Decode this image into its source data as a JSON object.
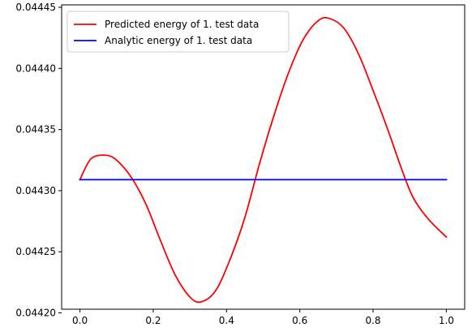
{
  "chart_data": {
    "type": "line",
    "title": "",
    "xlabel": "",
    "ylabel": "",
    "xlim": [
      -0.05,
      1.05
    ],
    "ylim": [
      0.044203,
      0.044452
    ],
    "grid": false,
    "legend_position": "top-left",
    "x_ticks": [
      0.0,
      0.2,
      0.4,
      0.6,
      0.8,
      1.0
    ],
    "x_tick_labels": [
      "0.0",
      "0.2",
      "0.4",
      "0.6",
      "0.8",
      "1.0"
    ],
    "y_ticks": [
      0.0442,
      0.04425,
      0.0443,
      0.04435,
      0.0444,
      0.04445
    ],
    "y_tick_labels": [
      "0.04420",
      "0.04425",
      "0.04430",
      "0.04435",
      "0.04440",
      "0.04445"
    ],
    "series": [
      {
        "name": "Predicted energy of 1. test data",
        "color": "#ff0000",
        "x": [
          0.0,
          0.03,
          0.07,
          0.1,
          0.14,
          0.18,
          0.22,
          0.26,
          0.3,
          0.33,
          0.37,
          0.41,
          0.45,
          0.49,
          0.53,
          0.57,
          0.61,
          0.65,
          0.68,
          0.72,
          0.76,
          0.8,
          0.84,
          0.88,
          0.91,
          0.95,
          1.0
        ],
        "y": [
          0.044309,
          0.044326,
          0.044329,
          0.044325,
          0.044311,
          0.044289,
          0.044259,
          0.044231,
          0.044213,
          0.044209,
          0.044218,
          0.044244,
          0.044278,
          0.044322,
          0.044362,
          0.044397,
          0.044424,
          0.044439,
          0.044441,
          0.044433,
          0.044412,
          0.044382,
          0.04435,
          0.044316,
          0.044294,
          0.044277,
          0.044262
        ]
      },
      {
        "name": "Analytic energy of 1. test data",
        "color": "#0000ff",
        "x": [
          0.0,
          1.0
        ],
        "y": [
          0.044309,
          0.044309
        ]
      }
    ]
  }
}
